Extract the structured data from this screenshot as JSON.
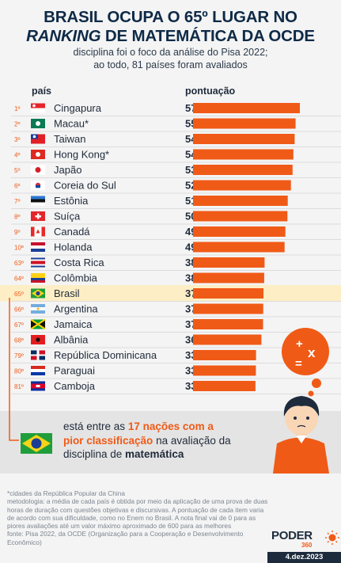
{
  "header": {
    "title_line1": "BRASIL OCUPA O 65º LUGAR NO",
    "title_line2_italic": "RANKING",
    "title_line2_rest": " DE MATEMÁTICA DA OCDE",
    "subtitle_line1": "disciplina foi o foco da análise do Pisa 2022;",
    "subtitle_line2": "ao todo, 81 países foram avaliados"
  },
  "columns": {
    "country": "país",
    "score": "pontuação"
  },
  "chart_data": {
    "type": "bar",
    "orientation": "horizontal",
    "categories": [
      "Cingapura",
      "Macau*",
      "Taiwan",
      "Hong Kong*",
      "Japão",
      "Coreia do Sul",
      "Estônia",
      "Suíça",
      "Canadá",
      "Holanda",
      "Costa Rica",
      "Colômbia",
      "Brasil",
      "Argentina",
      "Jamaica",
      "Albânia",
      "República Dominicana",
      "Paraguai",
      "Camboja"
    ],
    "ranks": [
      "1º",
      "2º",
      "3º",
      "4º",
      "5º",
      "6º",
      "7º",
      "8º",
      "9º",
      "10º",
      "63º",
      "64º",
      "65º",
      "66º",
      "67º",
      "68º",
      "79º",
      "80º",
      "81º"
    ],
    "values": [
      575,
      552,
      547,
      540,
      536,
      527,
      510,
      508,
      497,
      493,
      385,
      383,
      379,
      378,
      377,
      368,
      339,
      338,
      336
    ],
    "highlighted": "Brasil",
    "bar_color": "#f05a17",
    "highlight_color": "#fdeec6"
  },
  "flags": [
    "cingapura-flag",
    "macau-flag",
    "taiwan-flag",
    "hong-kong-flag",
    "japao-flag",
    "coreia-flag",
    "estonia-flag",
    "suica-flag",
    "canada-flag",
    "holanda-flag",
    "costa-rica-flag",
    "colombia-flag",
    "brasil-flag",
    "argentina-flag",
    "jamaica-flag",
    "albania-flag",
    "republica-dominicana-flag",
    "paraguai-flag",
    "camboja-flag"
  ],
  "callout": {
    "text_1": "está entre as ",
    "highlight": "17 nações com a pior classificação",
    "text_2": " na avaliação da disciplina de ",
    "bold": "matemática"
  },
  "thought_bubble": {
    "plus": "+",
    "times": "x",
    "equals": "="
  },
  "notes": {
    "asterisk": "*cidades da República Popular da China",
    "method": "metodologia: a média de cada país é obtida por meio da aplicação de uma prova de duas horas de duração com questões objetivas e discursivas. A pontuação de cada item varia de acordo com sua dificuldade, como no Enem no Brasil. A nota final vai de 0 para as piores avaliações até um valor máximo aproximado de 600 para as melhores",
    "source": "fonte: Pisa 2022, da OCDE (Organização para a Cooperação e Desenvolvimento Econômico)"
  },
  "logo": {
    "main": "PODER",
    "sub": "360"
  },
  "date": "4.dez.2023"
}
